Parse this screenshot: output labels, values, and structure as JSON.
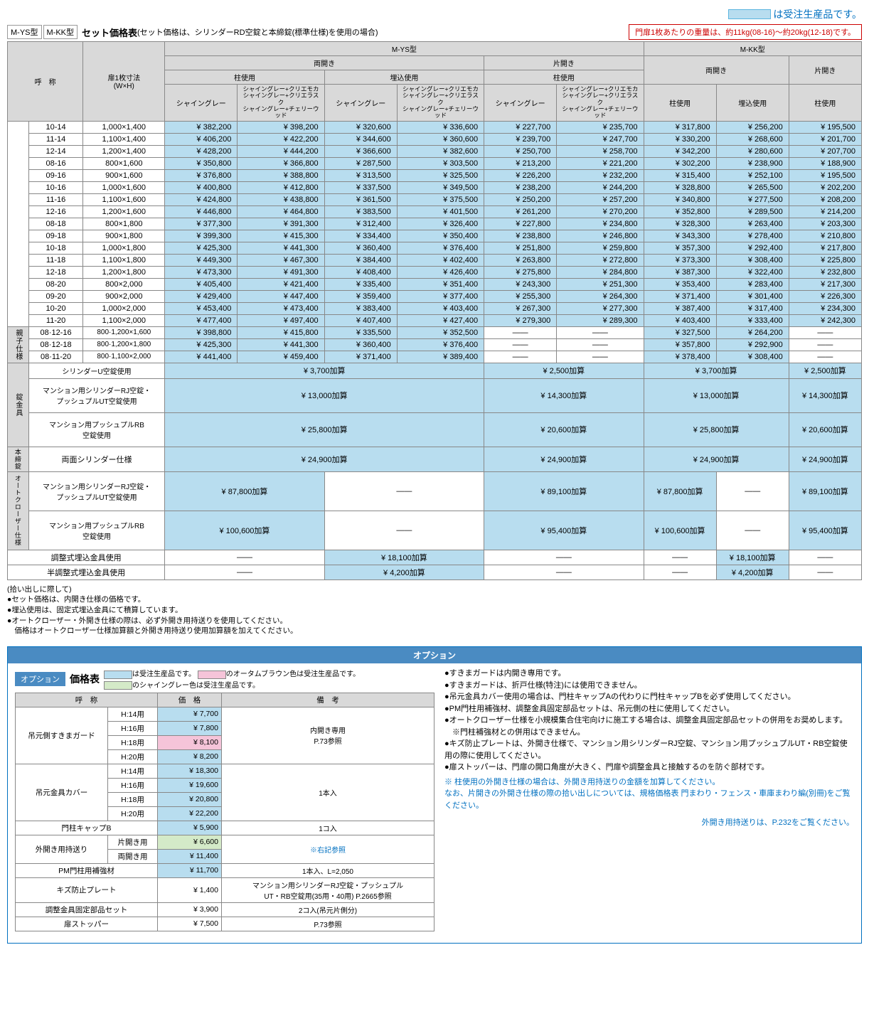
{
  "colors": {
    "bto": "#b8ddef",
    "accent": "#0070c0",
    "headerBg": "#d9d9d9",
    "pink": "#f5c4d9",
    "green": "#d4eac8",
    "optionHeader": "#4a8bc2"
  },
  "topLegend": "は受注生産品です。",
  "models": [
    "M-YS型",
    "M-KK型"
  ],
  "titleMain": "セット価格表",
  "titleSub": "(セット価格は、シリンダーRD空錠と本締錠(標準仕様)を使用の場合)",
  "weightNote": "門扉1枚あたりの重量は、約11kg(08-16)～約20kg(12-18)です。",
  "headers": {
    "name": "呼　称",
    "size": "扉1枚寸法\n(W×H)",
    "mys": "M-YS型",
    "mkk": "M-KK型",
    "double": "両開き",
    "single": "片開き",
    "pillar": "柱使用",
    "embed": "埋込使用",
    "colA": "シャイングレー",
    "colB": "シャイングレー+クリエモカ\nシャイングレー+クリエラスク\nシャイングレー+チェリーウッド"
  },
  "rows": [
    {
      "n": "10-14",
      "s": "1,000×1,400",
      "p": [
        "¥ 382,200",
        "¥ 398,200",
        "¥ 320,600",
        "¥ 336,600",
        "¥ 227,700",
        "¥ 235,700",
        "¥ 317,800",
        "¥ 256,200",
        "¥ 195,500"
      ]
    },
    {
      "n": "11-14",
      "s": "1,100×1,400",
      "p": [
        "¥ 406,200",
        "¥ 422,200",
        "¥ 344,600",
        "¥ 360,600",
        "¥ 239,700",
        "¥ 247,700",
        "¥ 330,200",
        "¥ 268,600",
        "¥ 201,700"
      ]
    },
    {
      "n": "12-14",
      "s": "1,200×1,400",
      "p": [
        "¥ 428,200",
        "¥ 444,200",
        "¥ 366,600",
        "¥ 382,600",
        "¥ 250,700",
        "¥ 258,700",
        "¥ 342,200",
        "¥ 280,600",
        "¥ 207,700"
      ]
    },
    {
      "n": "08-16",
      "s": "800×1,600",
      "p": [
        "¥ 350,800",
        "¥ 366,800",
        "¥ 287,500",
        "¥ 303,500",
        "¥ 213,200",
        "¥ 221,200",
        "¥ 302,200",
        "¥ 238,900",
        "¥ 188,900"
      ]
    },
    {
      "n": "09-16",
      "s": "900×1,600",
      "p": [
        "¥ 376,800",
        "¥ 388,800",
        "¥ 313,500",
        "¥ 325,500",
        "¥ 226,200",
        "¥ 232,200",
        "¥ 315,400",
        "¥ 252,100",
        "¥ 195,500"
      ]
    },
    {
      "n": "10-16",
      "s": "1,000×1,600",
      "p": [
        "¥ 400,800",
        "¥ 412,800",
        "¥ 337,500",
        "¥ 349,500",
        "¥ 238,200",
        "¥ 244,200",
        "¥ 328,800",
        "¥ 265,500",
        "¥ 202,200"
      ]
    },
    {
      "n": "11-16",
      "s": "1,100×1,600",
      "p": [
        "¥ 424,800",
        "¥ 438,800",
        "¥ 361,500",
        "¥ 375,500",
        "¥ 250,200",
        "¥ 257,200",
        "¥ 340,800",
        "¥ 277,500",
        "¥ 208,200"
      ]
    },
    {
      "n": "12-16",
      "s": "1,200×1,600",
      "p": [
        "¥ 446,800",
        "¥ 464,800",
        "¥ 383,500",
        "¥ 401,500",
        "¥ 261,200",
        "¥ 270,200",
        "¥ 352,800",
        "¥ 289,500",
        "¥ 214,200"
      ]
    },
    {
      "n": "08-18",
      "s": "800×1,800",
      "p": [
        "¥ 377,300",
        "¥ 391,300",
        "¥ 312,400",
        "¥ 326,400",
        "¥ 227,800",
        "¥ 234,800",
        "¥ 328,300",
        "¥ 263,400",
        "¥ 203,300"
      ]
    },
    {
      "n": "09-18",
      "s": "900×1,800",
      "p": [
        "¥ 399,300",
        "¥ 415,300",
        "¥ 334,400",
        "¥ 350,400",
        "¥ 238,800",
        "¥ 246,800",
        "¥ 343,300",
        "¥ 278,400",
        "¥ 210,800"
      ]
    },
    {
      "n": "10-18",
      "s": "1,000×1,800",
      "p": [
        "¥ 425,300",
        "¥ 441,300",
        "¥ 360,400",
        "¥ 376,400",
        "¥ 251,800",
        "¥ 259,800",
        "¥ 357,300",
        "¥ 292,400",
        "¥ 217,800"
      ]
    },
    {
      "n": "11-18",
      "s": "1,100×1,800",
      "p": [
        "¥ 449,300",
        "¥ 467,300",
        "¥ 384,400",
        "¥ 402,400",
        "¥ 263,800",
        "¥ 272,800",
        "¥ 373,300",
        "¥ 308,400",
        "¥ 225,800"
      ]
    },
    {
      "n": "12-18",
      "s": "1,200×1,800",
      "p": [
        "¥ 473,300",
        "¥ 491,300",
        "¥ 408,400",
        "¥ 426,400",
        "¥ 275,800",
        "¥ 284,800",
        "¥ 387,300",
        "¥ 322,400",
        "¥ 232,800"
      ]
    },
    {
      "n": "08-20",
      "s": "800×2,000",
      "p": [
        "¥ 405,400",
        "¥ 421,400",
        "¥ 335,400",
        "¥ 351,400",
        "¥ 243,300",
        "¥ 251,300",
        "¥ 353,400",
        "¥ 283,400",
        "¥ 217,300"
      ]
    },
    {
      "n": "09-20",
      "s": "900×2,000",
      "p": [
        "¥ 429,400",
        "¥ 447,400",
        "¥ 359,400",
        "¥ 377,400",
        "¥ 255,300",
        "¥ 264,300",
        "¥ 371,400",
        "¥ 301,400",
        "¥ 226,300"
      ]
    },
    {
      "n": "10-20",
      "s": "1,000×2,000",
      "p": [
        "¥ 453,400",
        "¥ 473,400",
        "¥ 383,400",
        "¥ 403,400",
        "¥ 267,300",
        "¥ 277,300",
        "¥ 387,400",
        "¥ 317,400",
        "¥ 234,300"
      ]
    },
    {
      "n": "11-20",
      "s": "1,100×2,000",
      "p": [
        "¥ 477,400",
        "¥ 497,400",
        "¥ 407,400",
        "¥ 427,400",
        "¥ 279,300",
        "¥ 289,300",
        "¥ 403,400",
        "¥ 333,400",
        "¥ 242,300"
      ]
    }
  ],
  "parentRows": [
    {
      "n": "08·12-16",
      "s": "800·1,200×1,600",
      "p": [
        "¥ 398,800",
        "¥ 415,800",
        "¥ 335,500",
        "¥ 352,500",
        "——",
        "——",
        "¥ 327,500",
        "¥ 264,200",
        "——"
      ]
    },
    {
      "n": "08·12-18",
      "s": "800·1,200×1,800",
      "p": [
        "¥ 425,300",
        "¥ 441,300",
        "¥ 360,400",
        "¥ 376,400",
        "——",
        "——",
        "¥ 357,800",
        "¥ 292,900",
        "——"
      ]
    },
    {
      "n": "08·11-20",
      "s": "800·1,100×2,000",
      "p": [
        "¥ 441,400",
        "¥ 459,400",
        "¥ 371,400",
        "¥ 389,400",
        "——",
        "——",
        "¥ 378,400",
        "¥ 308,400",
        "——"
      ]
    }
  ],
  "parentLabel": "親子仕様",
  "addonGroups": {
    "lock": {
      "label": "錠金具",
      "rows": [
        {
          "name": "シリンダーU空錠使用",
          "cells": [
            "¥  3,700加算",
            "¥  2,500加算",
            "¥  3,700加算",
            "¥  2,500加算"
          ]
        },
        {
          "name": "マンション用シリンダーRJ空錠・\nプッシュプルUT空錠使用",
          "cells": [
            "¥ 13,000加算",
            "¥ 14,300加算",
            "¥ 13,000加算",
            "¥ 14,300加算"
          ]
        },
        {
          "name": "マンション用プッシュプルRB\n空錠使用",
          "cells": [
            "¥ 25,800加算",
            "¥ 20,600加算",
            "¥ 25,800加算",
            "¥ 20,600加算"
          ]
        }
      ]
    },
    "deadbolt": {
      "label": "本締錠",
      "name": "両面シリンダー仕様",
      "cells": [
        "¥ 24,900加算",
        "¥ 24,900加算",
        "¥ 24,900加算",
        "¥ 24,900加算"
      ]
    },
    "auto": {
      "label": "オートクローザー仕様",
      "rows": [
        {
          "name": "マンション用シリンダーRJ空錠・\nプッシュプルUT空錠使用",
          "cells": [
            "¥  87,800加算",
            "——",
            "¥  89,100加算",
            "¥  87,800加算",
            "——",
            "¥  89,100加算"
          ]
        },
        {
          "name": "マンション用プッシュプルRB\n空錠使用",
          "cells": [
            "¥ 100,600加算",
            "——",
            "¥  95,400加算",
            "¥ 100,600加算",
            "——",
            "¥  95,400加算"
          ]
        }
      ]
    },
    "embed": [
      {
        "name": "調整式埋込金具使用",
        "cells": [
          "——",
          "¥ 18,100加算",
          "——",
          "——",
          "¥ 18,100加算",
          "——"
        ]
      },
      {
        "name": "半調整式埋込金具使用",
        "cells": [
          "——",
          "¥  4,200加算",
          "——",
          "——",
          "¥  4,200加算",
          "——"
        ]
      }
    ]
  },
  "notes": [
    "(拾い出しに際して)",
    "●セット価格は、内開き仕様の価格です。",
    "●埋込使用は、固定式埋込金具にて積算しています。",
    "●オートクローザー・外開き仕様の際は、必ず外開き用持送りを使用してください。",
    "　価格はオートクローザー仕様加算額と外開き用持送り使用加算額を加えてください。"
  ],
  "option": {
    "header": "オプション",
    "label": "オプション",
    "title": "価格表",
    "legends": [
      {
        "cls": "sw-blue",
        "txt": "は受注生産品です。"
      },
      {
        "cls": "sw-pink",
        "txt": "のオータムブラウン色は受注生産品です。"
      },
      {
        "cls": "sw-green",
        "txt": "のシャイングレー色は受注生産品です。"
      }
    ],
    "headers": {
      "name": "呼　称",
      "price": "価　格",
      "note": "備　考"
    },
    "rows": [
      {
        "group": "吊元側すきまガード",
        "span": 4,
        "sub": "H:14用",
        "price": "¥  7,700",
        "cls": "bto",
        "note": "内開き専用\nP.73参照",
        "noteSpan": 4
      },
      {
        "sub": "H:16用",
        "price": "¥  7,800",
        "cls": "bto"
      },
      {
        "sub": "H:18用",
        "price": "¥  8,100",
        "cls": "pink"
      },
      {
        "sub": "H:20用",
        "price": "¥  8,200",
        "cls": "bto"
      },
      {
        "group": "吊元金具カバー",
        "span": 4,
        "sub": "H:14用",
        "price": "¥ 18,300",
        "cls": "bto",
        "note": "1本入",
        "noteSpan": 4
      },
      {
        "sub": "H:16用",
        "price": "¥ 19,600",
        "cls": "bto"
      },
      {
        "sub": "H:18用",
        "price": "¥ 20,800",
        "cls": "bto"
      },
      {
        "sub": "H:20用",
        "price": "¥ 22,200",
        "cls": "bto"
      },
      {
        "group": "門柱キャップB",
        "colspan": 2,
        "price": "¥  5,900",
        "cls": "bto",
        "note": "1コ入"
      },
      {
        "group": "外開き用持送り",
        "span": 2,
        "sub": "片開き用",
        "price": "¥  6,600",
        "cls": "green",
        "note": "※右記参照",
        "noteSpan": 2,
        "noteCls": "blue-txt"
      },
      {
        "sub": "両開き用",
        "price": "¥ 11,400",
        "cls": "bto"
      },
      {
        "group": "PM門柱用補強材",
        "colspan": 2,
        "price": "¥ 11,700",
        "cls": "bto",
        "note": "1本入、L=2,050"
      },
      {
        "group": "キズ防止プレート",
        "colspan": 2,
        "price": "¥  1,400",
        "note": "マンション用シリンダーRJ空錠・プッシュプル\nUT・RB空錠用(35用・40用) P.2665参照"
      },
      {
        "group": "調整金具固定部品セット",
        "colspan": 2,
        "price": "¥  3,900",
        "note": "2コ入(吊元片側分)"
      },
      {
        "group": "扉ストッパー",
        "colspan": 2,
        "price": "¥  7,500",
        "note": "P.73参照"
      }
    ],
    "rightNotes": [
      "●すきまガードは内開き専用です。",
      "●すきまガードは、折戸仕様(特注)には使用できません。",
      "●吊元金具カバー使用の場合は、門柱キャップAの代わりに門柱キャップBを必ず使用してください。",
      "●PM門柱用補強材、調整金具固定部品セットは、吊元側の柱に使用してください。",
      "●オートクローザー仕様を小規模集合住宅向けに施工する場合は、調整金具固定部品セットの併用をお奨めします。",
      "　※門柱補強材との併用はできません。",
      "●キズ防止プレートは、外開き仕様で、マンション用シリンダーRJ空錠、マンション用プッシュプルUT・RB空錠使用の際に使用してください。",
      "●扉ストッパーは、門扉の開口角度が大きく、門扉や調整金具と接触するのを防ぐ部材です。"
    ],
    "rightBlue": "※ 柱使用の外開き仕様の場合は、外開き用持送りの金額を加算してください。\nなお、片開きの外開き仕様の際の拾い出しについては、規格価格表 門まわり・フェンス・車庫まわり編(別冊)をご覧ください。",
    "rightBottom": "外開き用持送りは、P.232をご覧ください。"
  }
}
